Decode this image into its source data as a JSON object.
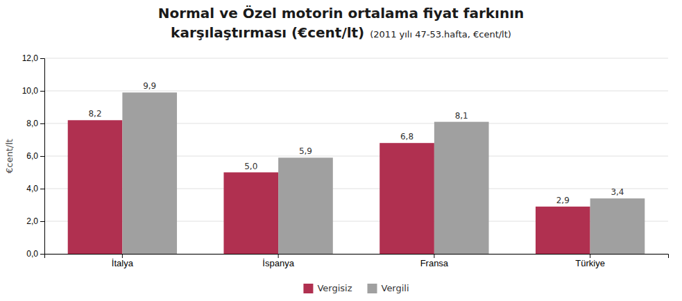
{
  "chart_data": {
    "type": "bar",
    "title": [
      "Normal ve Özel motorin ortalama fiyat farkının",
      "karşılaştırması (€cent/lt)"
    ],
    "subtitle": "(2011 yılı 47-53.hafta, €cent/lt)",
    "y_label": "€cent/lt",
    "categories": [
      "İtalya",
      "İspanya",
      "Fransa",
      "Türkiye"
    ],
    "series": [
      {
        "name": "Vergisiz",
        "color": "#B03050",
        "values": [
          8.2,
          5.0,
          6.8,
          2.9
        ],
        "value_labels": [
          "8,2",
          "5,0",
          "6,8",
          "2,9"
        ]
      },
      {
        "name": "Vergili",
        "color": "#A0A0A0",
        "values": [
          9.9,
          5.9,
          8.1,
          3.4
        ],
        "value_labels": [
          "9,9",
          "5,9",
          "8,1",
          "3,4"
        ]
      }
    ],
    "ylim": [
      0,
      12.0
    ],
    "yticks": [
      {
        "value": 0.0,
        "label": "0,0"
      },
      {
        "value": 2.0,
        "label": "2,0"
      },
      {
        "value": 4.0,
        "label": "4,0"
      },
      {
        "value": 6.0,
        "label": "6,0"
      },
      {
        "value": 8.0,
        "label": "8,0"
      },
      {
        "value": 10.0,
        "label": "10,0"
      },
      {
        "value": 12.0,
        "label": "12,0"
      }
    ],
    "grid": true,
    "legend": "bottom",
    "data_labels": true
  }
}
